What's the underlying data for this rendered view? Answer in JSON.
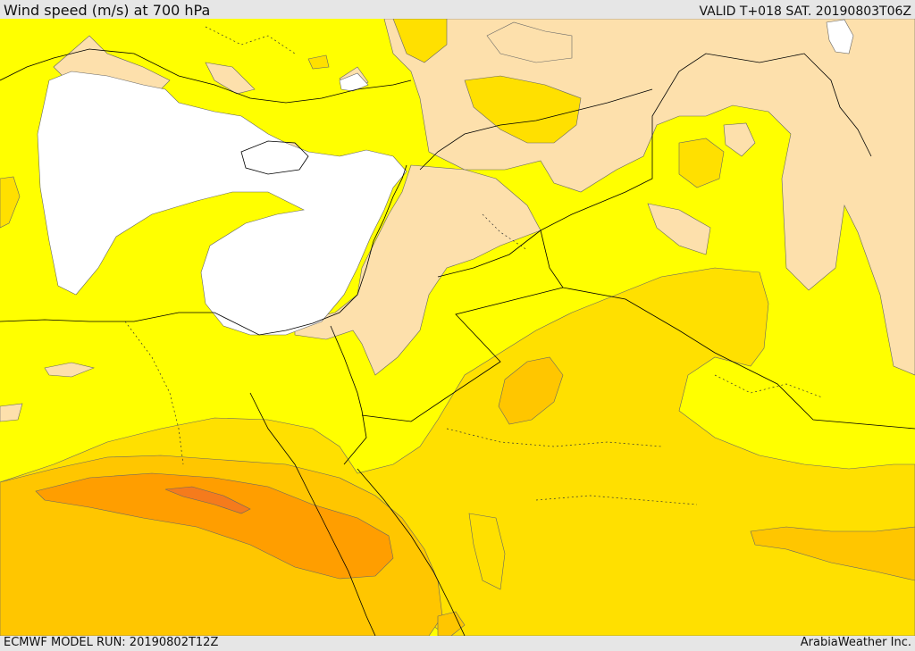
{
  "header": {
    "title": "Wind speed (m/s) at 700 hPa",
    "valid_time": "VALID T+018 SAT. 20190803T06Z"
  },
  "footer": {
    "model_run": "ECMWF MODEL RUN: 20190802T12Z",
    "credit": "ArabiaWeather Inc."
  },
  "colors": {
    "below_5": "#ffffff",
    "5_to_10": "#fde0ac",
    "10_to_15": "#ffff00",
    "15_to_20": "#ffe000",
    "20_to_25": "#ffc600",
    "25_to_30": "#ff9e00",
    "30_to_35": "#f57b1c",
    "land_border": "#000000",
    "contour_line": "#555555"
  }
}
